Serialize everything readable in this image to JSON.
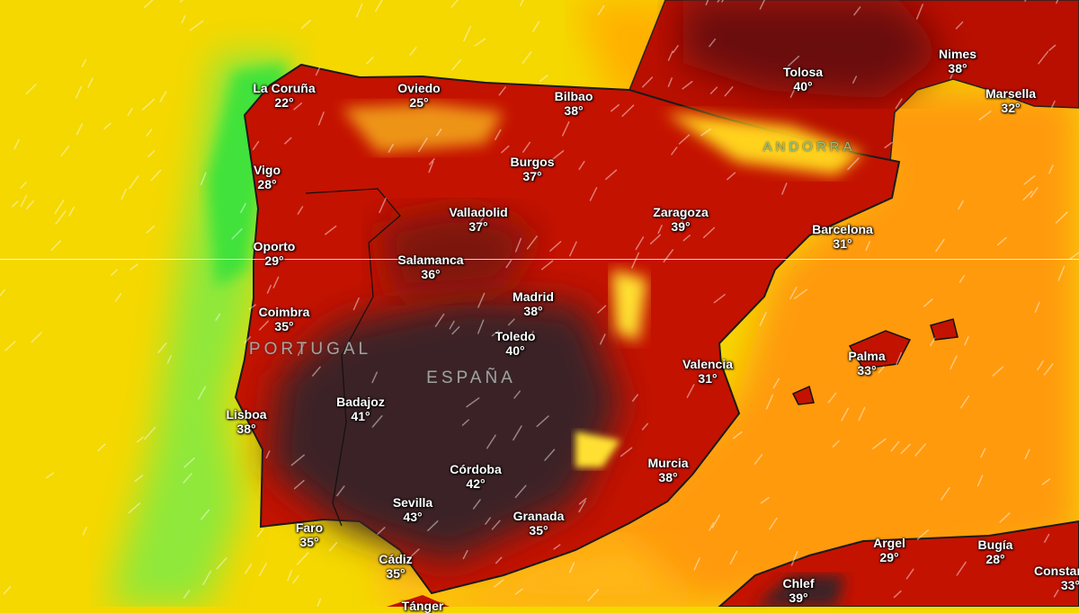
{
  "map": {
    "colors": {
      "sea_cool": "#f5d800",
      "coast_green": "#3fe23a",
      "sea_warm": "#ff9a10",
      "land_hot": "#c41200",
      "land_extreme": "#3a2226",
      "highlands": "#ffd21a"
    },
    "countries": [
      "PORTUGAL",
      "ESPAÑA",
      "ANDORRA"
    ],
    "cities": [
      {
        "name": "La Coruña",
        "temp": "22°"
      },
      {
        "name": "Oviedo",
        "temp": "25°"
      },
      {
        "name": "Bilbao",
        "temp": "38°"
      },
      {
        "name": "Tolosa",
        "temp": "40°"
      },
      {
        "name": "Nimes",
        "temp": "38°"
      },
      {
        "name": "Marsella",
        "temp": "32°"
      },
      {
        "name": "Vigo",
        "temp": "28°"
      },
      {
        "name": "Burgos",
        "temp": "37°"
      },
      {
        "name": "Valladolid",
        "temp": "37°"
      },
      {
        "name": "Zaragoza",
        "temp": "39°"
      },
      {
        "name": "Barcelona",
        "temp": "31°"
      },
      {
        "name": "Oporto",
        "temp": "29°"
      },
      {
        "name": "Salamanca",
        "temp": "36°"
      },
      {
        "name": "Madrid",
        "temp": "38°"
      },
      {
        "name": "Coimbra",
        "temp": "35°"
      },
      {
        "name": "Toledo",
        "temp": "40°"
      },
      {
        "name": "Valencia",
        "temp": "31°"
      },
      {
        "name": "Palma",
        "temp": "33°"
      },
      {
        "name": "Badajoz",
        "temp": "41°"
      },
      {
        "name": "Lisboa",
        "temp": "38°"
      },
      {
        "name": "Córdoba",
        "temp": "42°"
      },
      {
        "name": "Murcia",
        "temp": "38°"
      },
      {
        "name": "Sevilla",
        "temp": "43°"
      },
      {
        "name": "Granada",
        "temp": "35°"
      },
      {
        "name": "Faro",
        "temp": "35°"
      },
      {
        "name": "Cádiz",
        "temp": "35°"
      },
      {
        "name": "Argel",
        "temp": "29°"
      },
      {
        "name": "Bugía",
        "temp": "28°"
      },
      {
        "name": "Chlef",
        "temp": "39°"
      },
      {
        "name": "Constantine",
        "temp": "33°"
      },
      {
        "name": "Tánger",
        "temp": ""
      }
    ]
  }
}
